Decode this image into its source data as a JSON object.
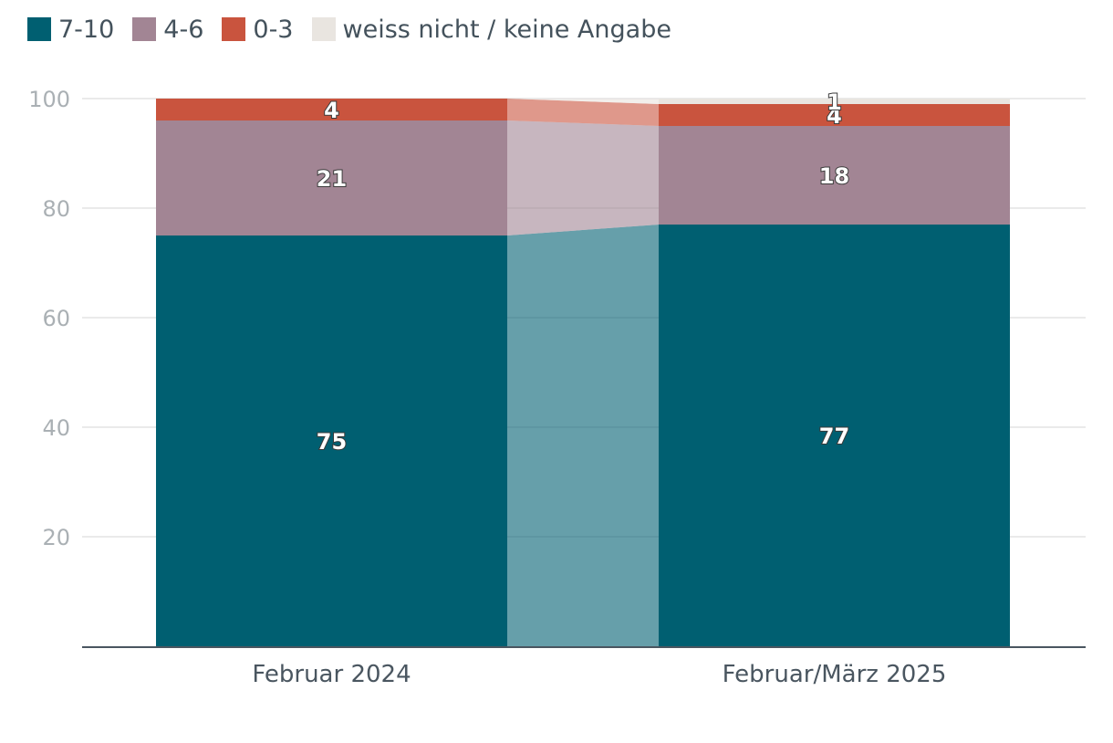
{
  "chart_data": {
    "type": "bar",
    "stacked": true,
    "categories": [
      "Februar 2024",
      "Februar/März 2025"
    ],
    "series": [
      {
        "name": "7-10",
        "color": "#005f71",
        "values": [
          75,
          77
        ]
      },
      {
        "name": "4-6",
        "color": "#a28594",
        "values": [
          21,
          18
        ]
      },
      {
        "name": "0-3",
        "color": "#c9543e",
        "values": [
          4,
          4
        ]
      },
      {
        "name": "weiss nicht / keine Angabe",
        "color": "#e9e5e0",
        "values": [
          0,
          1
        ]
      }
    ],
    "data_labels": [
      {
        "series": 0,
        "category": 0,
        "text": "75"
      },
      {
        "series": 1,
        "category": 0,
        "text": "21"
      },
      {
        "series": 2,
        "category": 0,
        "text": "4"
      },
      {
        "series": 0,
        "category": 1,
        "text": "77"
      },
      {
        "series": 1,
        "category": 1,
        "text": "18"
      },
      {
        "series": 2,
        "category": 1,
        "text": "4"
      },
      {
        "series": 3,
        "category": 1,
        "text": "1"
      }
    ],
    "yticks": [
      "20",
      "40",
      "60",
      "80",
      "100"
    ],
    "ylim": [
      0,
      100
    ],
    "grid": true,
    "legend_position": "top-left",
    "connector_bands": true
  }
}
